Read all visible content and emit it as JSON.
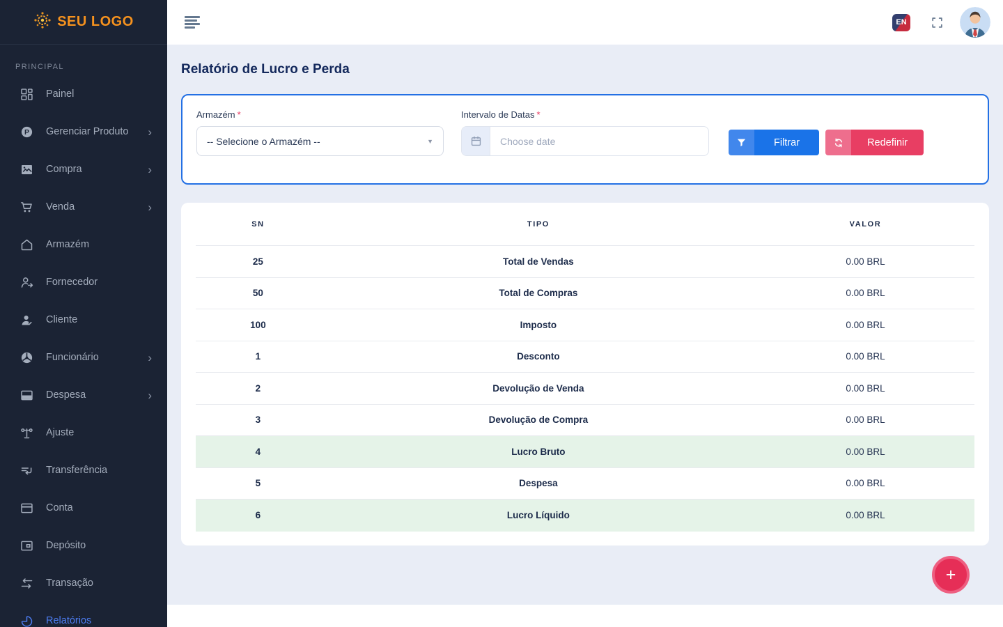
{
  "sidebar": {
    "logo_text": "SEU LOGO",
    "section_label": "PRINCIPAL",
    "items": [
      {
        "label": "Painel",
        "slug": "painel",
        "icon": "dashboard-icon",
        "chevron": false,
        "active": false
      },
      {
        "label": "Gerenciar Produto",
        "slug": "gerenciar-produto",
        "icon": "product-icon",
        "chevron": true,
        "active": false
      },
      {
        "label": "Compra",
        "slug": "compra",
        "icon": "purchase-icon",
        "chevron": true,
        "active": false
      },
      {
        "label": "Venda",
        "slug": "venda",
        "icon": "cart-icon",
        "chevron": true,
        "active": false
      },
      {
        "label": "Armazém",
        "slug": "armazem",
        "icon": "warehouse-icon",
        "chevron": false,
        "active": false
      },
      {
        "label": "Fornecedor",
        "slug": "fornecedor",
        "icon": "supplier-icon",
        "chevron": false,
        "active": false
      },
      {
        "label": "Cliente",
        "slug": "cliente",
        "icon": "customer-icon",
        "chevron": false,
        "active": false
      },
      {
        "label": "Funcionário",
        "slug": "funcionario",
        "icon": "employee-icon",
        "chevron": true,
        "active": false
      },
      {
        "label": "Despesa",
        "slug": "despesa",
        "icon": "expense-icon",
        "chevron": true,
        "active": false
      },
      {
        "label": "Ajuste",
        "slug": "ajuste",
        "icon": "adjustment-icon",
        "chevron": false,
        "active": false
      },
      {
        "label": "Transferência",
        "slug": "transferencia",
        "icon": "transfer-icon",
        "chevron": false,
        "active": false
      },
      {
        "label": "Conta",
        "slug": "conta",
        "icon": "account-icon",
        "chevron": false,
        "active": false
      },
      {
        "label": "Depósito",
        "slug": "deposito",
        "icon": "deposit-icon",
        "chevron": false,
        "active": false
      },
      {
        "label": "Transação",
        "slug": "transacao",
        "icon": "transaction-icon",
        "chevron": false,
        "active": false
      },
      {
        "label": "Relatórios",
        "slug": "relatorios",
        "icon": "reports-icon",
        "chevron": false,
        "active": true
      }
    ],
    "chevron_glyph": "›"
  },
  "topbar": {
    "language_badge": "EN"
  },
  "page": {
    "title": "Relatório de Lucro e Perda"
  },
  "filters": {
    "warehouse_label": "Armazém",
    "required_mark": "*",
    "warehouse_value": "-- Selecione o Armazém --",
    "caret_glyph": "▼",
    "date_label": "Intervalo de Datas",
    "date_placeholder": "Choose date",
    "date_value": "",
    "filter_button": "Filtrar",
    "reset_button": "Redefinir"
  },
  "table": {
    "headers": [
      "SN",
      "TIPO",
      "VALOR"
    ],
    "rows": [
      {
        "sn": "25",
        "tipo": "Total de Vendas",
        "valor": "0.00 BRL",
        "highlight": false
      },
      {
        "sn": "50",
        "tipo": "Total de Compras",
        "valor": "0.00 BRL",
        "highlight": false
      },
      {
        "sn": "100",
        "tipo": "Imposto",
        "valor": "0.00 BRL",
        "highlight": false
      },
      {
        "sn": "1",
        "tipo": "Desconto",
        "valor": "0.00 BRL",
        "highlight": false
      },
      {
        "sn": "2",
        "tipo": "Devolução de Venda",
        "valor": "0.00 BRL",
        "highlight": false
      },
      {
        "sn": "3",
        "tipo": "Devolução de Compra",
        "valor": "0.00 BRL",
        "highlight": false
      },
      {
        "sn": "4",
        "tipo": "Lucro Bruto",
        "valor": "0.00 BRL",
        "highlight": true
      },
      {
        "sn": "5",
        "tipo": "Despesa",
        "valor": "0.00 BRL",
        "highlight": false
      },
      {
        "sn": "6",
        "tipo": "Lucro Líquido",
        "valor": "0.00 BRL",
        "highlight": true
      }
    ]
  },
  "fab": {
    "label": "+"
  },
  "colors": {
    "brand_orange": "#f6921e",
    "sidebar_bg": "#1b2334",
    "active_link_blue": "#4d7df2",
    "filter_border_blue": "#2370e4",
    "filter_button_blue": "#1a73e8",
    "reset_button_red": "#e83e63",
    "fab_pink": "#e62e57",
    "highlight_green": "#e5f3e8",
    "content_bg": "#e9edf6"
  }
}
